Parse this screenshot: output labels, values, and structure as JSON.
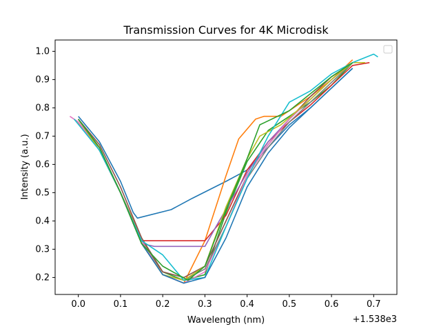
{
  "chart_data": {
    "type": "line",
    "title": "Transmission Curves for 4K Microdisk",
    "xlabel": "Wavelength (nm)",
    "ylabel": "Intensity (a.u.)",
    "x_offset_label": "+1.538e3",
    "xlim": [
      -0.055,
      0.755
    ],
    "ylim": [
      0.14,
      1.04
    ],
    "x_ticks": [
      0.0,
      0.1,
      0.2,
      0.3,
      0.4,
      0.5,
      0.6,
      0.7
    ],
    "x_tick_labels": [
      "0.0",
      "0.1",
      "0.2",
      "0.3",
      "0.4",
      "0.5",
      "0.6",
      "0.7"
    ],
    "y_ticks": [
      0.2,
      0.3,
      0.4,
      0.5,
      0.6,
      0.7,
      0.8,
      0.9,
      1.0
    ],
    "y_tick_labels": [
      "0.2",
      "0.3",
      "0.4",
      "0.5",
      "0.6",
      "0.7",
      "0.8",
      "0.9",
      "1.0"
    ],
    "grid": false,
    "legend": "top-right (empty)",
    "series": [
      {
        "color": "#1f77b4",
        "x": [
          0.0,
          0.05,
          0.1,
          0.13,
          0.14,
          0.22,
          0.27,
          0.35,
          0.4,
          0.45,
          0.5,
          0.55,
          0.6,
          0.65
        ],
        "y": [
          0.77,
          0.68,
          0.54,
          0.43,
          0.41,
          0.44,
          0.48,
          0.54,
          0.58,
          0.66,
          0.74,
          0.8,
          0.87,
          0.94
        ]
      },
      {
        "color": "#ff7f0e",
        "x": [
          -0.01,
          0.05,
          0.1,
          0.15,
          0.2,
          0.25,
          0.3,
          0.35,
          0.38,
          0.42,
          0.44,
          0.48,
          0.55,
          0.6,
          0.65
        ],
        "y": [
          0.76,
          0.66,
          0.5,
          0.34,
          0.21,
          0.18,
          0.33,
          0.56,
          0.69,
          0.76,
          0.77,
          0.77,
          0.84,
          0.9,
          0.97
        ]
      },
      {
        "color": "#2ca02c",
        "x": [
          0.0,
          0.05,
          0.1,
          0.15,
          0.2,
          0.25,
          0.3,
          0.35,
          0.4,
          0.45,
          0.5,
          0.55,
          0.6,
          0.65
        ],
        "y": [
          0.76,
          0.65,
          0.5,
          0.33,
          0.22,
          0.19,
          0.21,
          0.43,
          0.61,
          0.72,
          0.77,
          0.82,
          0.88,
          0.96
        ]
      },
      {
        "color": "#d62728",
        "x": [
          0.0,
          0.05,
          0.1,
          0.15,
          0.18,
          0.25,
          0.3,
          0.35,
          0.4,
          0.45,
          0.5,
          0.55,
          0.6,
          0.65,
          0.69
        ],
        "y": [
          0.76,
          0.65,
          0.5,
          0.33,
          0.33,
          0.33,
          0.33,
          0.42,
          0.58,
          0.68,
          0.75,
          0.81,
          0.88,
          0.95,
          0.96
        ]
      },
      {
        "color": "#9467bd",
        "x": [
          0.0,
          0.05,
          0.1,
          0.15,
          0.18,
          0.3,
          0.33,
          0.4,
          0.45,
          0.5,
          0.55,
          0.6,
          0.65
        ],
        "y": [
          0.76,
          0.65,
          0.5,
          0.32,
          0.31,
          0.31,
          0.39,
          0.57,
          0.68,
          0.76,
          0.83,
          0.9,
          0.96
        ]
      },
      {
        "color": "#8c564b",
        "x": [
          0.0,
          0.05,
          0.1,
          0.15,
          0.2,
          0.25,
          0.3,
          0.35,
          0.4,
          0.45,
          0.5,
          0.55,
          0.6,
          0.65
        ],
        "y": [
          0.76,
          0.67,
          0.52,
          0.34,
          0.22,
          0.2,
          0.24,
          0.4,
          0.56,
          0.67,
          0.76,
          0.84,
          0.91,
          0.96
        ]
      },
      {
        "color": "#e377c2",
        "x": [
          -0.02,
          0.0,
          0.05,
          0.1,
          0.15,
          0.2,
          0.25,
          0.3,
          0.35,
          0.4,
          0.45,
          0.5,
          0.55,
          0.6,
          0.65
        ],
        "y": [
          0.77,
          0.75,
          0.65,
          0.5,
          0.33,
          0.21,
          0.18,
          0.22,
          0.38,
          0.56,
          0.67,
          0.76,
          0.83,
          0.9,
          0.96
        ]
      },
      {
        "color": "#7f7f7f",
        "x": [
          0.0,
          0.05,
          0.1,
          0.15,
          0.2,
          0.25,
          0.3,
          0.35,
          0.4,
          0.45,
          0.5,
          0.55,
          0.6,
          0.65
        ],
        "y": [
          0.76,
          0.65,
          0.5,
          0.32,
          0.21,
          0.19,
          0.23,
          0.38,
          0.55,
          0.66,
          0.75,
          0.82,
          0.89,
          0.96
        ]
      },
      {
        "color": "#bcbd22",
        "x": [
          0.0,
          0.05,
          0.1,
          0.15,
          0.2,
          0.25,
          0.3,
          0.35,
          0.4,
          0.43,
          0.48,
          0.55,
          0.6,
          0.65,
          0.68
        ],
        "y": [
          0.76,
          0.65,
          0.5,
          0.32,
          0.21,
          0.19,
          0.24,
          0.45,
          0.62,
          0.7,
          0.74,
          0.83,
          0.9,
          0.96,
          0.96
        ]
      },
      {
        "color": "#17becf",
        "x": [
          -0.01,
          0.05,
          0.1,
          0.15,
          0.2,
          0.25,
          0.3,
          0.35,
          0.4,
          0.45,
          0.5,
          0.55,
          0.6,
          0.65,
          0.7,
          0.71
        ],
        "y": [
          0.76,
          0.65,
          0.5,
          0.33,
          0.28,
          0.19,
          0.2,
          0.38,
          0.55,
          0.7,
          0.82,
          0.86,
          0.92,
          0.96,
          0.99,
          0.98
        ]
      },
      {
        "color": "#1f77b4",
        "x": [
          0.0,
          0.05,
          0.1,
          0.15,
          0.2,
          0.25,
          0.3,
          0.35,
          0.4,
          0.45,
          0.5,
          0.55,
          0.6,
          0.65
        ],
        "y": [
          0.76,
          0.66,
          0.5,
          0.32,
          0.21,
          0.18,
          0.2,
          0.34,
          0.52,
          0.64,
          0.73,
          0.8,
          0.87,
          0.94
        ]
      },
      {
        "color": "#2ca02c",
        "x": [
          0.0,
          0.05,
          0.1,
          0.15,
          0.2,
          0.26,
          0.3,
          0.35,
          0.4,
          0.43,
          0.5,
          0.55,
          0.6,
          0.65
        ],
        "y": [
          0.76,
          0.66,
          0.5,
          0.32,
          0.24,
          0.19,
          0.24,
          0.44,
          0.62,
          0.74,
          0.79,
          0.85,
          0.91,
          0.96
        ]
      }
    ]
  }
}
